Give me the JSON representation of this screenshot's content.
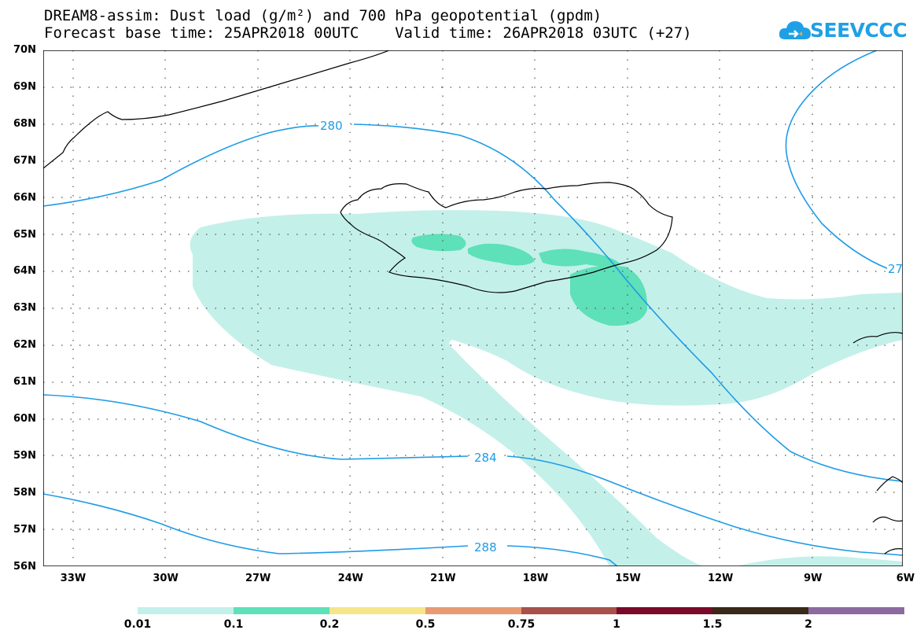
{
  "title": {
    "line1": "DREAM8-assim: Dust load (g/m²) and 700 hPa geopotential (gpdm)",
    "line2": "Forecast base time: 25APR2018 00UTC    Valid time: 26APR2018 03UTC (+27)"
  },
  "logo": {
    "text": "SEEVCCC",
    "icon": "cloud-icon",
    "color": "#1fa0e6"
  },
  "map": {
    "lat_labels": [
      "70N",
      "69N",
      "68N",
      "67N",
      "66N",
      "65N",
      "64N",
      "63N",
      "62N",
      "61N",
      "60N",
      "59N",
      "58N",
      "57N",
      "56N"
    ],
    "lon_labels": [
      "33W",
      "30W",
      "27W",
      "24W",
      "21W",
      "18W",
      "15W",
      "12W",
      "9W",
      "6W"
    ],
    "contour_labels": [
      "280",
      "284",
      "288",
      "27"
    ],
    "contour_color": "#1e9be6",
    "coastline_color": "#000000"
  },
  "legend": {
    "colors": [
      "#c4f0ea",
      "#5ee0b8",
      "#f5e68a",
      "#e89a72",
      "#a8504a",
      "#7a0a2a",
      "#3a2818",
      "#8c6aa0"
    ],
    "labels": [
      "0.01",
      "0.1",
      "0.2",
      "0.5",
      "0.75",
      "1",
      "1.5",
      "2"
    ]
  }
}
